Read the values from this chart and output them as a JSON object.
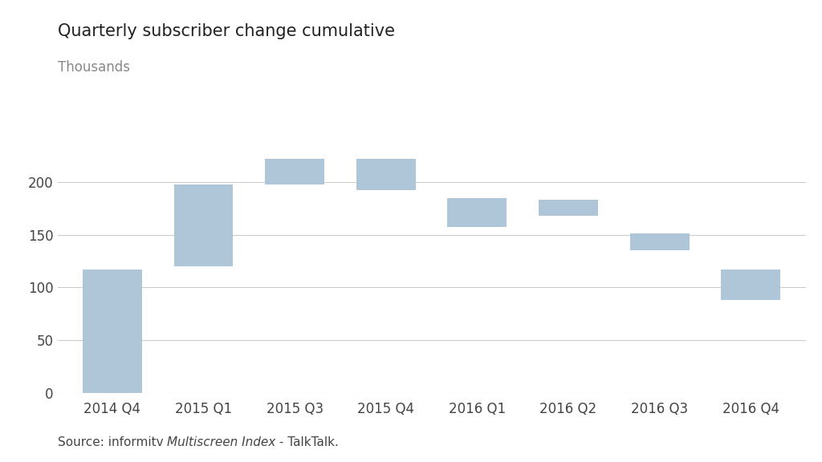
{
  "categories": [
    "2014 Q4",
    "2015 Q1",
    "2015 Q3",
    "2015 Q4",
    "2016 Q1",
    "2016 Q2",
    "2016 Q3",
    "2016 Q4"
  ],
  "bar_bottoms": [
    0,
    120,
    198,
    192,
    157,
    168,
    135,
    88
  ],
  "bar_tops": [
    117,
    198,
    222,
    222,
    185,
    183,
    151,
    117
  ],
  "bar_color": "#aec6d8",
  "title": "Quarterly subscriber change cumulative",
  "subtitle": "Thousands",
  "title_color": "#222222",
  "subtitle_color": "#888888",
  "ylim": [
    0,
    250
  ],
  "yticks": [
    0,
    50,
    100,
    150,
    200
  ],
  "grid_color": "#cccccc",
  "background_color": "#ffffff",
  "source_text": "Source: informitv ",
  "source_italic": "Multiscreen Index",
  "source_end": " - TalkTalk.",
  "title_fontsize": 15,
  "subtitle_fontsize": 12,
  "tick_fontsize": 12,
  "source_fontsize": 11,
  "bar_width": 0.65
}
